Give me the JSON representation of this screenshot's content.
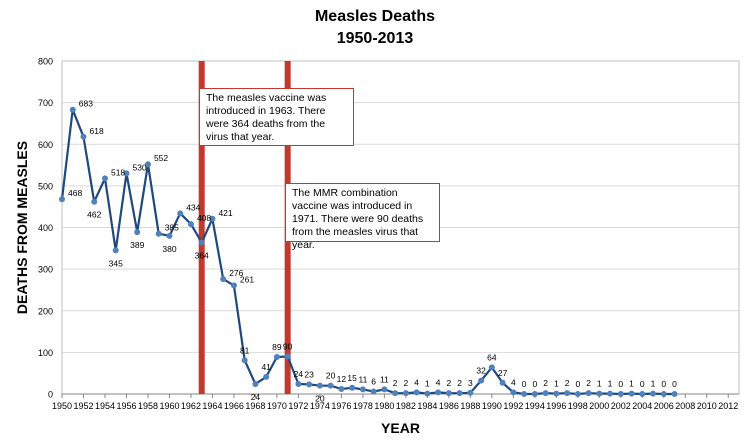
{
  "chart_data": {
    "type": "line",
    "title": "Measles Deaths",
    "subtitle": "1950-2013",
    "xlabel": "YEAR",
    "ylabel": "DEATHS FROM MEASLES",
    "ylim": [
      0,
      800
    ],
    "yticks": [
      0,
      100,
      200,
      300,
      400,
      500,
      600,
      700,
      800
    ],
    "xlim": [
      1950,
      2013
    ],
    "xticks": [
      1950,
      1952,
      1954,
      1956,
      1958,
      1960,
      1962,
      1964,
      1966,
      1968,
      1970,
      1972,
      1974,
      1976,
      1978,
      1980,
      1982,
      1984,
      1986,
      1988,
      1990,
      1992,
      1994,
      1996,
      1998,
      2000,
      2002,
      2004,
      2006,
      2008,
      2010,
      2012
    ],
    "grid": true,
    "series": [
      {
        "color": "#1f497d",
        "x": [
          1950,
          1951,
          1952,
          1953,
          1954,
          1955,
          1956,
          1957,
          1958,
          1959,
          1960,
          1961,
          1962,
          1963,
          1964,
          1965,
          1966,
          1967,
          1968,
          1969,
          1970,
          1971,
          1972,
          1973,
          1974,
          1975,
          1976,
          1977,
          1978,
          1979,
          1980,
          1981,
          1982,
          1983,
          1984,
          1985,
          1986,
          1987,
          1988,
          1989,
          1990,
          1991,
          1992,
          1993,
          1994,
          1995,
          1996,
          1997,
          1998,
          1999,
          2000,
          2001,
          2002,
          2003,
          2004,
          2005,
          2006,
          2007
        ],
        "y": [
          468,
          683,
          618,
          462,
          518,
          345,
          530,
          389,
          552,
          385,
          380,
          434,
          408,
          364,
          421,
          276,
          261,
          81,
          24,
          41,
          89,
          90,
          24,
          23,
          20,
          20,
          12,
          15,
          11,
          6,
          11,
          2,
          2,
          4,
          1,
          4,
          2,
          2,
          3,
          32,
          64,
          27,
          4,
          0,
          0,
          2,
          1,
          2,
          0,
          2,
          1,
          1,
          0,
          1,
          0,
          1,
          0,
          0
        ],
        "labels": [
          "468",
          "683",
          "618",
          "462",
          "518",
          "345",
          "530",
          "389",
          "552",
          "385",
          "380",
          "434",
          "408",
          "364",
          "421",
          "276",
          "261",
          "81",
          "24",
          "41",
          "89",
          "90",
          "24",
          "23",
          "20",
          "20",
          "12",
          "15",
          "11",
          "6",
          "11",
          "2",
          "2",
          "4",
          "1",
          "4",
          "2",
          "2",
          "3",
          "32",
          "64",
          "27",
          "4",
          "0",
          "0",
          "2",
          "1",
          "2",
          "0",
          "2",
          "1",
          "1",
          "0",
          "1",
          "0",
          "1",
          "0",
          "0"
        ]
      }
    ],
    "vertical_markers": [
      {
        "year": 1963,
        "color": "#c0392b"
      },
      {
        "year": 1971,
        "color": "#c0392b"
      }
    ],
    "annotations": [
      {
        "text": "The measles vaccine was introduced in 1963. There were 364 deaths from the virus that year."
      },
      {
        "text": "The MMR combination vaccine was introduced in 1971. There were 90 deaths from the measles virus that year."
      }
    ]
  }
}
